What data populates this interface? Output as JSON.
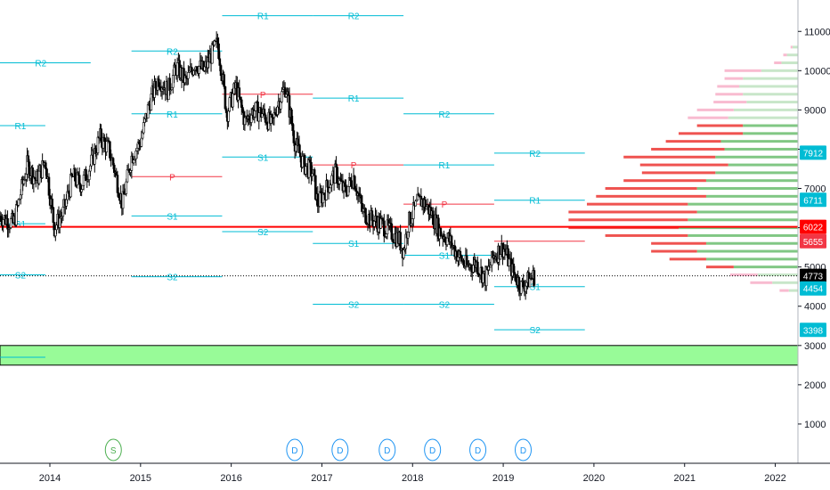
{
  "chart_data": {
    "type": "candlestick",
    "x_axis": {
      "tick_labels": [
        "2014",
        "2015",
        "2016",
        "2017",
        "2018",
        "2019",
        "2020",
        "2021",
        "2022"
      ],
      "range": [
        2013.45,
        2022.25
      ]
    },
    "y_axis": {
      "tick_labels": [
        "1000",
        "2000",
        "3000",
        "4000",
        "5000",
        "6000",
        "7000",
        "8000",
        "9000",
        "10000",
        "11000"
      ],
      "range": [
        0,
        11800
      ],
      "side": "right"
    },
    "price_series": {
      "points": [
        [
          2013.45,
          6300
        ],
        [
          2013.6,
          6100
        ],
        [
          2013.75,
          7600
        ],
        [
          2013.85,
          7200
        ],
        [
          2013.95,
          7700
        ],
        [
          2014.05,
          6000
        ],
        [
          2014.15,
          6400
        ],
        [
          2014.25,
          7300
        ],
        [
          2014.35,
          7100
        ],
        [
          2014.45,
          7600
        ],
        [
          2014.55,
          8300
        ],
        [
          2014.65,
          8000
        ],
        [
          2014.7,
          7600
        ],
        [
          2014.8,
          6600
        ],
        [
          2014.9,
          7800
        ],
        [
          2015.0,
          8200
        ],
        [
          2015.1,
          9200
        ],
        [
          2015.2,
          9800
        ],
        [
          2015.3,
          9500
        ],
        [
          2015.4,
          10100
        ],
        [
          2015.5,
          9700
        ],
        [
          2015.6,
          10200
        ],
        [
          2015.7,
          10000
        ],
        [
          2015.8,
          10500
        ],
        [
          2015.85,
          10700
        ],
        [
          2015.9,
          9900
        ],
        [
          2015.95,
          8900
        ],
        [
          2016.05,
          9600
        ],
        [
          2016.15,
          8700
        ],
        [
          2016.25,
          9000
        ],
        [
          2016.35,
          8900
        ],
        [
          2016.45,
          8600
        ],
        [
          2016.5,
          9100
        ],
        [
          2016.6,
          9600
        ],
        [
          2016.7,
          8200
        ],
        [
          2016.8,
          7600
        ],
        [
          2016.9,
          7400
        ],
        [
          2016.95,
          6600
        ],
        [
          2017.05,
          7000
        ],
        [
          2017.15,
          7400
        ],
        [
          2017.25,
          6900
        ],
        [
          2017.35,
          7300
        ],
        [
          2017.45,
          6400
        ],
        [
          2017.55,
          6200
        ],
        [
          2017.65,
          6100
        ],
        [
          2017.75,
          5900
        ],
        [
          2017.85,
          5700
        ],
        [
          2017.9,
          5400
        ],
        [
          2017.95,
          6100
        ],
        [
          2018.05,
          6600
        ],
        [
          2018.1,
          6700
        ],
        [
          2018.2,
          6400
        ],
        [
          2018.3,
          5900
        ],
        [
          2018.4,
          5700
        ],
        [
          2018.5,
          5300
        ],
        [
          2018.6,
          5000
        ],
        [
          2018.7,
          5100
        ],
        [
          2018.8,
          4700
        ],
        [
          2018.9,
          5300
        ],
        [
          2019.0,
          5500
        ],
        [
          2019.1,
          4900
        ],
        [
          2019.2,
          4500
        ],
        [
          2019.25,
          4600
        ],
        [
          2019.3,
          4700
        ],
        [
          2019.35,
          4780
        ]
      ],
      "current_price": "4773"
    },
    "pivot_levels": [
      {
        "label": "R2",
        "value": 10200,
        "x_start": 2013.45,
        "x_end": 2014.45,
        "color": "#00bcd4"
      },
      {
        "label": "R1",
        "value": 8600,
        "x_start": 2013.45,
        "x_end": 2013.95,
        "color": "#00bcd4"
      },
      {
        "label": "S1",
        "value": 6100,
        "x_start": 2013.45,
        "x_end": 2013.95,
        "color": "#00bcd4"
      },
      {
        "label": "S2",
        "value": 4800,
        "x_start": 2013.45,
        "x_end": 2013.95,
        "color": "#00bcd4"
      },
      {
        "label": "R2",
        "value": 10500,
        "x_start": 2014.9,
        "x_end": 2015.9,
        "color": "#00bcd4"
      },
      {
        "label": "R1",
        "value": 8900,
        "x_start": 2014.9,
        "x_end": 2015.9,
        "color": "#00bcd4"
      },
      {
        "label": "P",
        "value": 7300,
        "x_start": 2014.9,
        "x_end": 2015.9,
        "color": "#f23645"
      },
      {
        "label": "S1",
        "value": 6300,
        "x_start": 2014.9,
        "x_end": 2015.9,
        "color": "#00bcd4"
      },
      {
        "label": "S2",
        "value": 4750,
        "x_start": 2014.9,
        "x_end": 2015.9,
        "color": "#00bcd4"
      },
      {
        "label": "R1",
        "value": 11400,
        "x_start": 2015.9,
        "x_end": 2016.9,
        "color": "#00bcd4"
      },
      {
        "label": "P",
        "value": 9400,
        "x_start": 2015.9,
        "x_end": 2016.9,
        "color": "#f23645"
      },
      {
        "label": "S1",
        "value": 7800,
        "x_start": 2015.9,
        "x_end": 2016.9,
        "color": "#00bcd4"
      },
      {
        "label": "S2",
        "value": 5900,
        "x_start": 2015.9,
        "x_end": 2016.9,
        "color": "#00bcd4"
      },
      {
        "label": "R2",
        "value": 11400,
        "x_start": 2016.9,
        "x_end": 2017.9,
        "color": "#00bcd4"
      },
      {
        "label": "R1",
        "value": 9300,
        "x_start": 2016.9,
        "x_end": 2017.9,
        "color": "#00bcd4"
      },
      {
        "label": "P",
        "value": 7600,
        "x_start": 2016.9,
        "x_end": 2017.9,
        "color": "#f23645"
      },
      {
        "label": "S1",
        "value": 5600,
        "x_start": 2016.9,
        "x_end": 2017.9,
        "color": "#00bcd4"
      },
      {
        "label": "S2",
        "value": 4050,
        "x_start": 2016.9,
        "x_end": 2017.9,
        "color": "#00bcd4"
      },
      {
        "label": "R2",
        "value": 8900,
        "x_start": 2017.9,
        "x_end": 2018.9,
        "color": "#00bcd4"
      },
      {
        "label": "R1",
        "value": 7600,
        "x_start": 2017.9,
        "x_end": 2018.9,
        "color": "#00bcd4"
      },
      {
        "label": "P",
        "value": 6600,
        "x_start": 2017.9,
        "x_end": 2018.9,
        "color": "#f23645"
      },
      {
        "label": "S1",
        "value": 5300,
        "x_start": 2017.9,
        "x_end": 2018.9,
        "color": "#00bcd4"
      },
      {
        "label": "S2",
        "value": 4050,
        "x_start": 2017.9,
        "x_end": 2018.9,
        "color": "#00bcd4"
      },
      {
        "label": "R2",
        "value": 7900,
        "x_start": 2018.9,
        "x_end": 2019.9,
        "color": "#00bcd4"
      },
      {
        "label": "R1",
        "value": 6700,
        "x_start": 2018.9,
        "x_end": 2019.9,
        "color": "#00bcd4"
      },
      {
        "label": "S1",
        "value": 4500,
        "x_start": 2018.9,
        "x_end": 2019.9,
        "color": "#00bcd4"
      },
      {
        "label": "S2",
        "value": 3400,
        "x_start": 2018.9,
        "x_end": 2019.9,
        "color": "#00bcd4"
      }
    ],
    "extra_lines": [
      {
        "value": 5655,
        "x_start": 2018.9,
        "x_end": 2019.9,
        "color": "#f23645"
      },
      {
        "value": 2700,
        "x_start": 2013.45,
        "x_end": 2013.95,
        "color": "#00bcd4"
      }
    ],
    "horizontal_level": {
      "value": 6022,
      "color": "#ff0000"
    },
    "zone": {
      "low": 2500,
      "high": 3000,
      "color": "#98fb98"
    },
    "price_badges": [
      {
        "label": "7912",
        "value": 7912,
        "color": "#00bcd4"
      },
      {
        "label": "6711",
        "value": 6711,
        "color": "#00bcd4"
      },
      {
        "label": "6022",
        "value": 6022,
        "color": "#ff0000"
      },
      {
        "label": "5655",
        "value": 5655,
        "color": "#f23645"
      },
      {
        "label": "4773",
        "value": 4773,
        "color": "#000000"
      },
      {
        "label": "4454",
        "value": 4454,
        "color": "#00bcd4"
      },
      {
        "label": "3398",
        "value": 3398,
        "color": "#00bcd4"
      }
    ],
    "events": [
      {
        "label": "S",
        "x": 2014.7,
        "color": "#4caf50"
      },
      {
        "label": "D",
        "x": 2016.7,
        "color": "#2196f3"
      },
      {
        "label": "D",
        "x": 2017.2,
        "color": "#2196f3"
      },
      {
        "label": "D",
        "x": 2017.72,
        "color": "#2196f3"
      },
      {
        "label": "D",
        "x": 2018.22,
        "color": "#2196f3"
      },
      {
        "label": "D",
        "x": 2018.72,
        "color": "#2196f3"
      },
      {
        "label": "D",
        "x": 2019.22,
        "color": "#2196f3"
      }
    ],
    "volume_profile": {
      "levels": [
        {
          "price": 10600,
          "up": 0.03,
          "down": 0.01
        },
        {
          "price": 10400,
          "up": 0.06,
          "down": 0.02
        },
        {
          "price": 10200,
          "up": 0.09,
          "down": 0.04
        },
        {
          "price": 10000,
          "up": 0.2,
          "down": 0.2
        },
        {
          "price": 9800,
          "up": 0.3,
          "down": 0.1
        },
        {
          "price": 9600,
          "up": 0.32,
          "down": 0.12
        },
        {
          "price": 9400,
          "up": 0.3,
          "down": 0.15
        },
        {
          "price": 9200,
          "up": 0.28,
          "down": 0.18
        },
        {
          "price": 9000,
          "up": 0.35,
          "down": 0.2
        },
        {
          "price": 8800,
          "up": 0.38,
          "down": 0.22
        },
        {
          "price": 8600,
          "up": 0.3,
          "down": 0.25
        },
        {
          "price": 8400,
          "up": 0.3,
          "down": 0.35
        },
        {
          "price": 8200,
          "up": 0.42,
          "down": 0.3
        },
        {
          "price": 8000,
          "up": 0.4,
          "down": 0.4
        },
        {
          "price": 7800,
          "up": 0.45,
          "down": 0.5
        },
        {
          "price": 7600,
          "up": 0.38,
          "down": 0.48
        },
        {
          "price": 7400,
          "up": 0.45,
          "down": 0.4
        },
        {
          "price": 7200,
          "up": 0.5,
          "down": 0.45
        },
        {
          "price": 7000,
          "up": 0.55,
          "down": 0.5
        },
        {
          "price": 6800,
          "up": 0.5,
          "down": 0.6
        },
        {
          "price": 6600,
          "up": 0.6,
          "down": 0.55
        },
        {
          "price": 6400,
          "up": 0.55,
          "down": 0.7
        },
        {
          "price": 6200,
          "up": 0.6,
          "down": 0.65
        },
        {
          "price": 6000,
          "up": 0.65,
          "down": 0.6
        },
        {
          "price": 5800,
          "up": 0.6,
          "down": 0.45
        },
        {
          "price": 5600,
          "up": 0.5,
          "down": 0.3
        },
        {
          "price": 5400,
          "up": 0.55,
          "down": 0.25
        },
        {
          "price": 5200,
          "up": 0.5,
          "down": 0.2
        },
        {
          "price": 5000,
          "up": 0.35,
          "down": 0.15
        },
        {
          "price": 4800,
          "up": 0.22,
          "down": 0.15
        },
        {
          "price": 4600,
          "up": 0.14,
          "down": 0.12
        },
        {
          "price": 4400,
          "up": 0.05,
          "down": 0.05
        }
      ],
      "max_width_fraction": 0.23,
      "up_color": "#81c784",
      "down_color": "#ef5350",
      "faded_up_color": "#c8e6c9",
      "faded_down_color": "#f8bbd0",
      "bright_range": [
        5000,
        8600
      ]
    }
  }
}
